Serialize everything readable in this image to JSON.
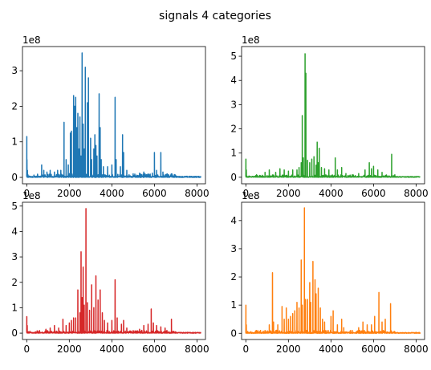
{
  "figure": {
    "suptitle": "signals 4 categories"
  },
  "chart_data": [
    {
      "type": "line",
      "color": "#1f77b4",
      "offset_label": "1e8",
      "xlim": [
        -200,
        8400
      ],
      "ylim": [
        -0.18,
        3.68
      ],
      "xticks": [
        0,
        2000,
        4000,
        6000,
        8000
      ],
      "yticks": [
        0,
        1,
        2,
        3
      ],
      "grid": false,
      "peaks": [
        [
          0,
          1.15
        ],
        [
          10,
          0.5
        ],
        [
          30,
          0.2
        ],
        [
          700,
          0.35
        ],
        [
          800,
          0.2
        ],
        [
          950,
          0.15
        ],
        [
          1100,
          0.2
        ],
        [
          1300,
          0.15
        ],
        [
          1450,
          0.2
        ],
        [
          1600,
          0.2
        ],
        [
          1750,
          1.55
        ],
        [
          1850,
          0.5
        ],
        [
          1950,
          0.35
        ],
        [
          2050,
          1.25
        ],
        [
          2100,
          1.3
        ],
        [
          2200,
          2.3
        ],
        [
          2250,
          2.0
        ],
        [
          2300,
          2.25
        ],
        [
          2350,
          1.4
        ],
        [
          2400,
          1.8
        ],
        [
          2450,
          0.8
        ],
        [
          2500,
          1.7
        ],
        [
          2550,
          0.6
        ],
        [
          2600,
          3.5
        ],
        [
          2650,
          1.5
        ],
        [
          2700,
          0.8
        ],
        [
          2750,
          3.1
        ],
        [
          2850,
          2.1
        ],
        [
          2900,
          2.8
        ],
        [
          3000,
          1.1
        ],
        [
          3050,
          0.5
        ],
        [
          3150,
          0.8
        ],
        [
          3200,
          1.2
        ],
        [
          3250,
          0.9
        ],
        [
          3300,
          0.6
        ],
        [
          3400,
          2.35
        ],
        [
          3450,
          1.4
        ],
        [
          3500,
          0.5
        ],
        [
          3600,
          0.3
        ],
        [
          3800,
          0.3
        ],
        [
          4000,
          0.35
        ],
        [
          4150,
          2.25
        ],
        [
          4200,
          0.5
        ],
        [
          4400,
          0.3
        ],
        [
          4500,
          1.2
        ],
        [
          4550,
          0.7
        ],
        [
          4700,
          0.2
        ],
        [
          5000,
          0.1
        ],
        [
          5300,
          0.12
        ],
        [
          5500,
          0.15
        ],
        [
          5700,
          0.1
        ],
        [
          5900,
          0.12
        ],
        [
          6000,
          0.7
        ],
        [
          6100,
          0.2
        ],
        [
          6300,
          0.7
        ],
        [
          6400,
          0.15
        ],
        [
          6600,
          0.1
        ],
        [
          6800,
          0.1
        ],
        [
          7000,
          0.05
        ]
      ]
    },
    {
      "type": "line",
      "color": "#2ca02c",
      "offset_label": "1e8",
      "xlim": [
        -200,
        8400
      ],
      "ylim": [
        -0.27,
        5.4
      ],
      "xticks": [
        0,
        2000,
        4000,
        6000,
        8000
      ],
      "yticks": [
        0,
        1,
        2,
        3,
        4,
        5
      ],
      "grid": false,
      "peaks": [
        [
          0,
          0.75
        ],
        [
          20,
          0.3
        ],
        [
          500,
          0.1
        ],
        [
          900,
          0.2
        ],
        [
          1100,
          0.3
        ],
        [
          1400,
          0.2
        ],
        [
          1600,
          0.35
        ],
        [
          1800,
          0.3
        ],
        [
          2000,
          0.25
        ],
        [
          2200,
          0.3
        ],
        [
          2400,
          0.3
        ],
        [
          2500,
          0.4
        ],
        [
          2600,
          0.6
        ],
        [
          2650,
          2.55
        ],
        [
          2700,
          0.8
        ],
        [
          2780,
          5.1
        ],
        [
          2820,
          4.3
        ],
        [
          2900,
          0.7
        ],
        [
          3000,
          0.6
        ],
        [
          3100,
          0.75
        ],
        [
          3200,
          0.85
        ],
        [
          3300,
          0.5
        ],
        [
          3350,
          1.45
        ],
        [
          3400,
          0.6
        ],
        [
          3450,
          1.2
        ],
        [
          3550,
          0.4
        ],
        [
          3700,
          0.35
        ],
        [
          3900,
          0.3
        ],
        [
          4200,
          0.8
        ],
        [
          4300,
          0.3
        ],
        [
          4500,
          0.4
        ],
        [
          4700,
          0.15
        ],
        [
          5000,
          0.1
        ],
        [
          5300,
          0.15
        ],
        [
          5600,
          0.3
        ],
        [
          5800,
          0.6
        ],
        [
          5900,
          0.35
        ],
        [
          6000,
          0.45
        ],
        [
          6200,
          0.3
        ],
        [
          6400,
          0.2
        ],
        [
          6850,
          0.95
        ],
        [
          7000,
          0.1
        ]
      ]
    },
    {
      "type": "line",
      "color": "#d62728",
      "offset_label": "1e8",
      "xlim": [
        -200,
        8400
      ],
      "ylim": [
        -0.25,
        5.15
      ],
      "xticks": [
        0,
        2000,
        4000,
        6000,
        8000
      ],
      "yticks": [
        0,
        1,
        2,
        3,
        4,
        5
      ],
      "grid": false,
      "peaks": [
        [
          0,
          0.65
        ],
        [
          20,
          0.3
        ],
        [
          600,
          0.1
        ],
        [
          900,
          0.15
        ],
        [
          1100,
          0.2
        ],
        [
          1300,
          0.3
        ],
        [
          1500,
          0.2
        ],
        [
          1700,
          0.55
        ],
        [
          1850,
          0.3
        ],
        [
          2000,
          0.4
        ],
        [
          2100,
          0.5
        ],
        [
          2200,
          0.6
        ],
        [
          2300,
          0.6
        ],
        [
          2400,
          1.7
        ],
        [
          2500,
          0.8
        ],
        [
          2550,
          3.2
        ],
        [
          2600,
          1.4
        ],
        [
          2650,
          2.6
        ],
        [
          2700,
          1.1
        ],
        [
          2780,
          4.9
        ],
        [
          2850,
          1.2
        ],
        [
          2950,
          0.9
        ],
        [
          3050,
          1.9
        ],
        [
          3150,
          1.0
        ],
        [
          3250,
          2.25
        ],
        [
          3350,
          1.3
        ],
        [
          3450,
          1.7
        ],
        [
          3550,
          0.8
        ],
        [
          3650,
          0.5
        ],
        [
          3800,
          0.4
        ],
        [
          4000,
          0.5
        ],
        [
          4150,
          2.1
        ],
        [
          4250,
          0.6
        ],
        [
          4450,
          0.35
        ],
        [
          4550,
          0.5
        ],
        [
          4700,
          0.2
        ],
        [
          5000,
          0.1
        ],
        [
          5300,
          0.15
        ],
        [
          5500,
          0.3
        ],
        [
          5700,
          0.35
        ],
        [
          5850,
          0.95
        ],
        [
          5950,
          0.4
        ],
        [
          6100,
          0.3
        ],
        [
          6300,
          0.25
        ],
        [
          6500,
          0.2
        ],
        [
          6800,
          0.55
        ],
        [
          7000,
          0.05
        ]
      ]
    },
    {
      "type": "line",
      "color": "#ff7f0e",
      "offset_label": "1e8",
      "xlim": [
        -200,
        8400
      ],
      "ylim": [
        -0.22,
        4.65
      ],
      "xticks": [
        0,
        2000,
        4000,
        6000,
        8000
      ],
      "yticks": [
        0,
        1,
        2,
        3,
        4
      ],
      "grid": false,
      "peaks": [
        [
          0,
          1.0
        ],
        [
          20,
          0.3
        ],
        [
          500,
          0.1
        ],
        [
          900,
          0.1
        ],
        [
          1100,
          0.3
        ],
        [
          1250,
          2.15
        ],
        [
          1300,
          0.4
        ],
        [
          1500,
          0.3
        ],
        [
          1700,
          0.95
        ],
        [
          1800,
          0.5
        ],
        [
          1900,
          0.9
        ],
        [
          2000,
          0.5
        ],
        [
          2100,
          0.6
        ],
        [
          2200,
          0.7
        ],
        [
          2300,
          0.8
        ],
        [
          2400,
          1.1
        ],
        [
          2500,
          0.9
        ],
        [
          2600,
          2.6
        ],
        [
          2650,
          1.0
        ],
        [
          2750,
          4.45
        ],
        [
          2800,
          1.2
        ],
        [
          2900,
          1.2
        ],
        [
          3000,
          1.8
        ],
        [
          3050,
          1.1
        ],
        [
          3150,
          2.55
        ],
        [
          3250,
          1.9
        ],
        [
          3300,
          1.4
        ],
        [
          3400,
          1.6
        ],
        [
          3500,
          0.9
        ],
        [
          3600,
          0.5
        ],
        [
          3700,
          0.4
        ],
        [
          4000,
          0.6
        ],
        [
          4100,
          0.8
        ],
        [
          4300,
          0.3
        ],
        [
          4500,
          0.5
        ],
        [
          4600,
          0.2
        ],
        [
          5000,
          0.1
        ],
        [
          5300,
          0.2
        ],
        [
          5500,
          0.4
        ],
        [
          5700,
          0.3
        ],
        [
          5900,
          0.3
        ],
        [
          6050,
          0.6
        ],
        [
          6250,
          1.45
        ],
        [
          6400,
          0.4
        ],
        [
          6550,
          0.5
        ],
        [
          6800,
          1.05
        ],
        [
          7000,
          0.05
        ]
      ]
    }
  ]
}
